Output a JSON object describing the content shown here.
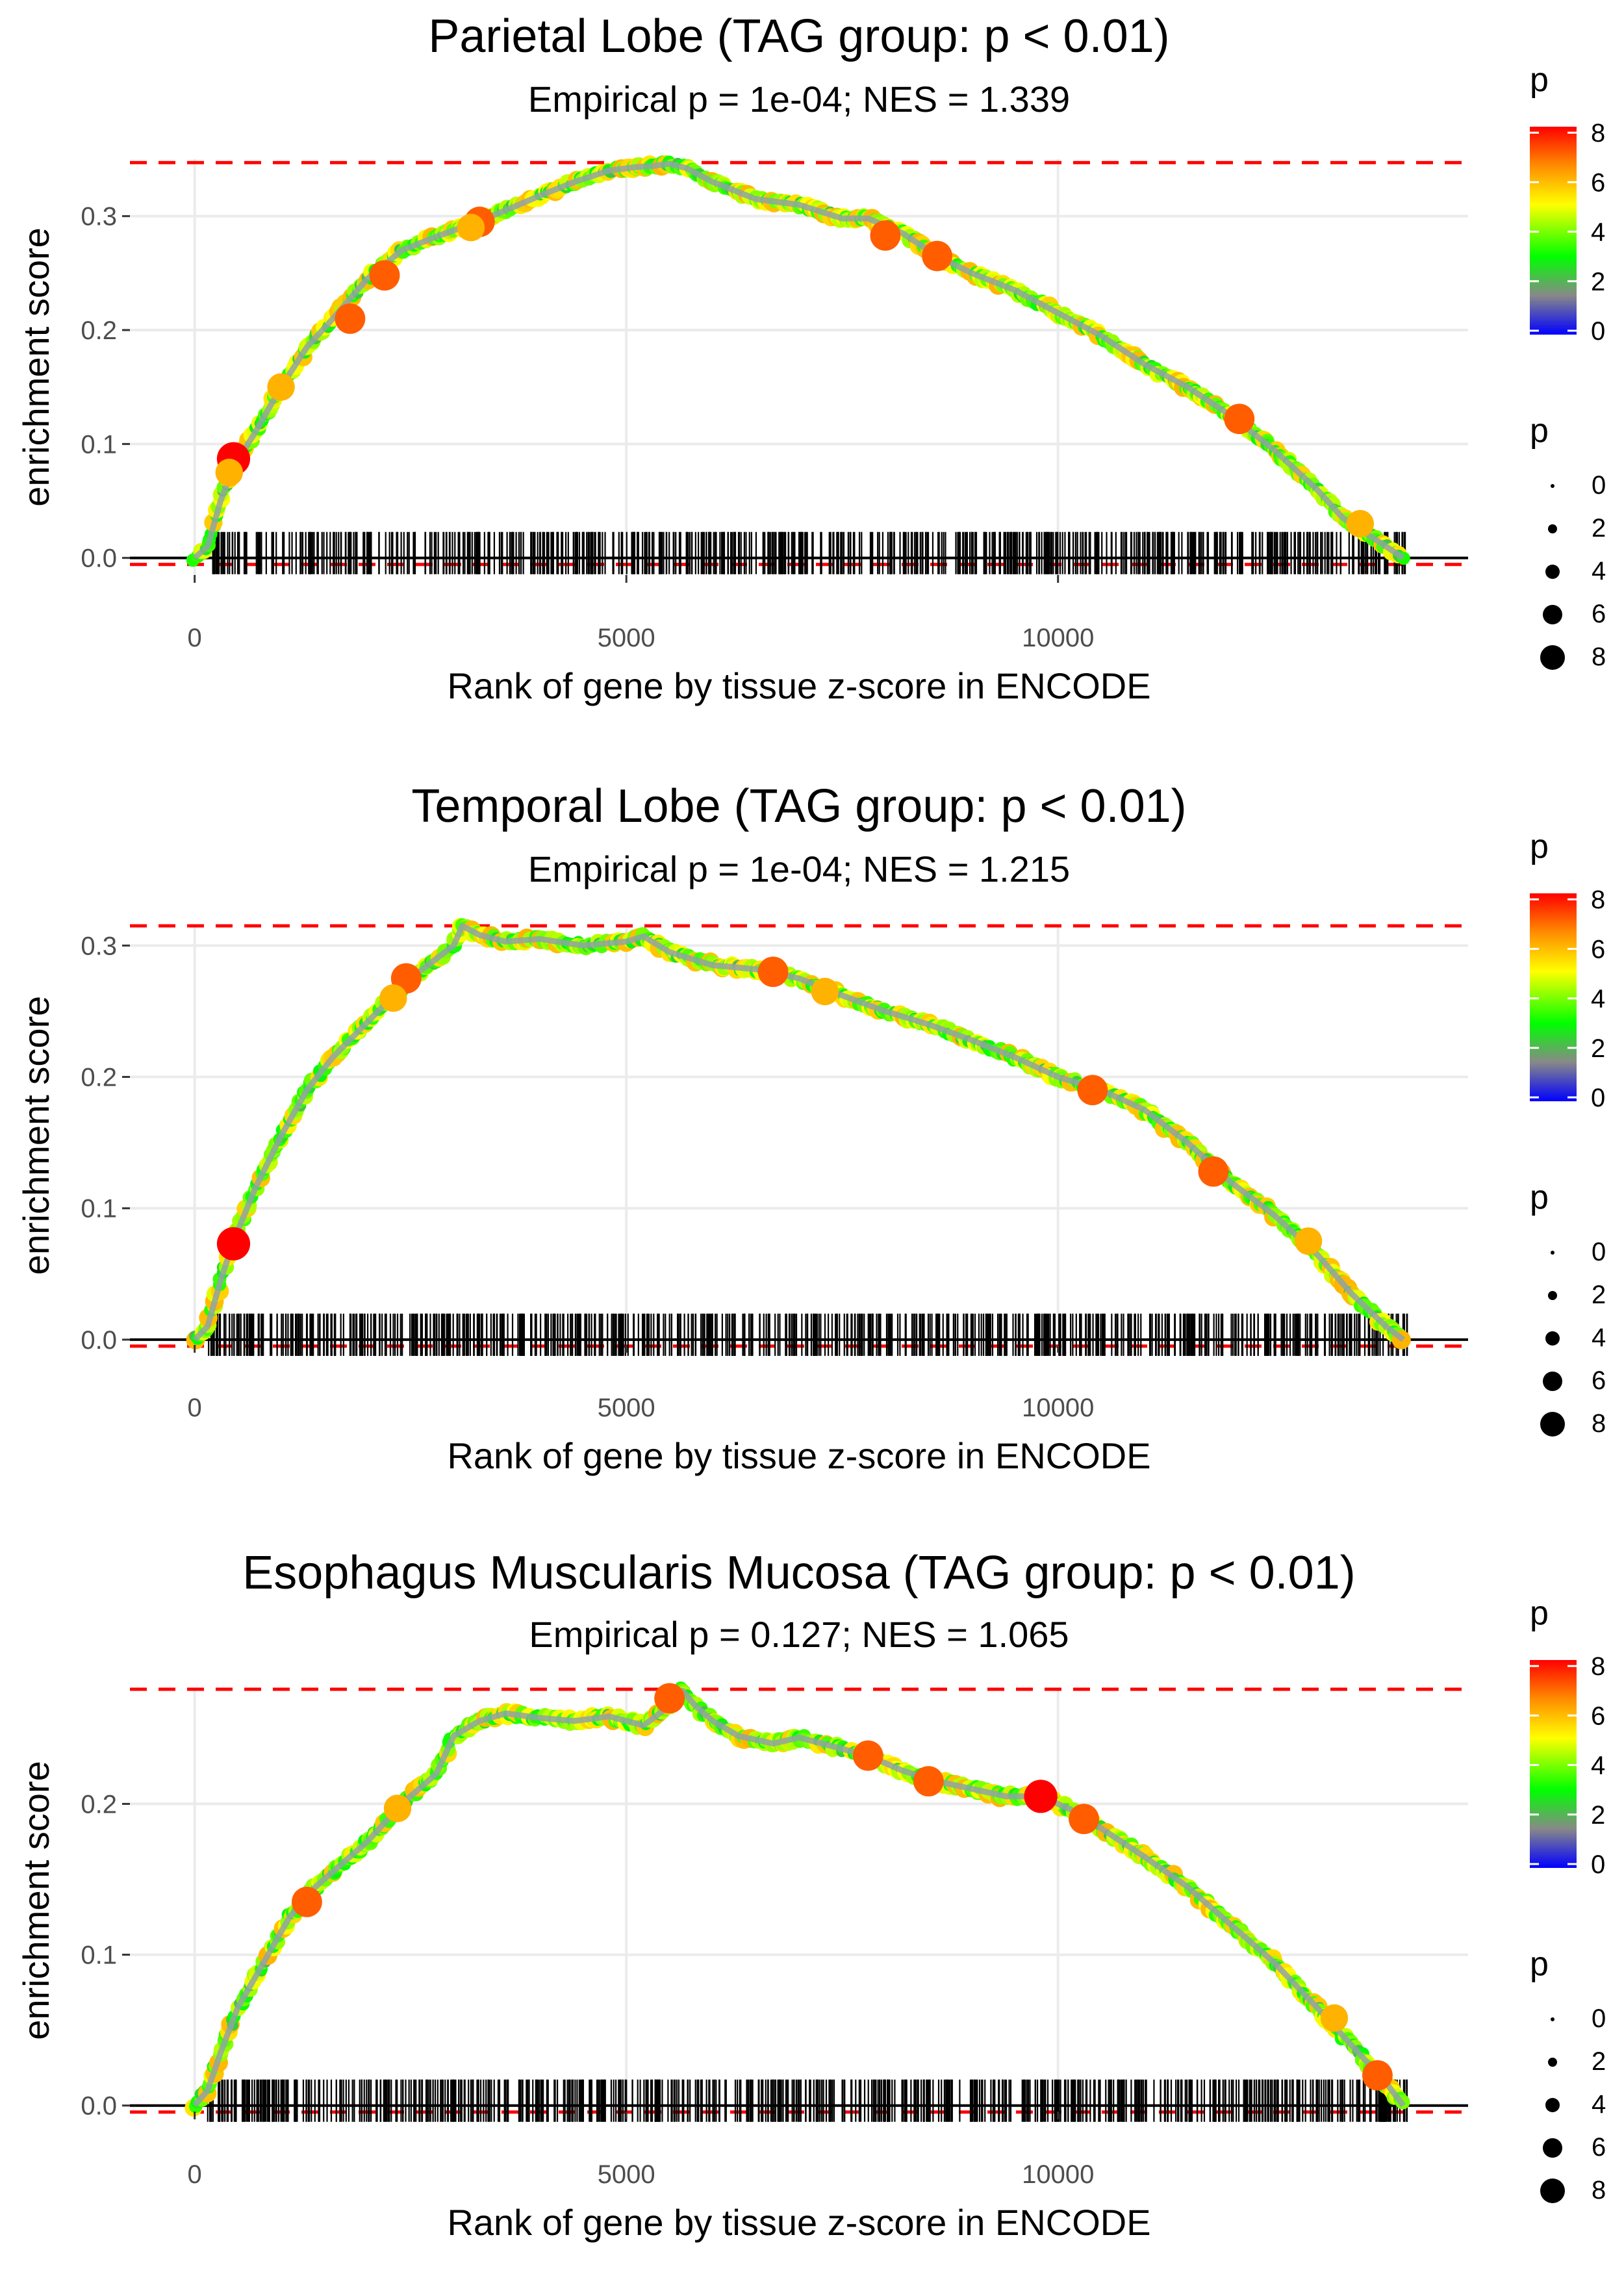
{
  "colorscale": {
    "stops": [
      "#0000ff",
      "#888888",
      "#00ff00",
      "#ffff00",
      "#ff8c00",
      "#ff0000"
    ],
    "stop_values": [
      0,
      1.5,
      3,
      5,
      6.5,
      8
    ]
  },
  "line_color": "#8fa3a3",
  "ref_line_color": "#ff0000",
  "chart_data": [
    {
      "type": "line",
      "title": "Parietal Lobe (TAG group: p < 0.01)",
      "subtitle": "Empirical p = 1e-04; NES = 1.339",
      "xlabel": "Rank of gene by tissue z-score in ENCODE",
      "ylabel": "enrichment score",
      "xlim": [
        -750,
        14750
      ],
      "ylim": [
        -0.015,
        0.35
      ],
      "xticks": [
        0,
        5000,
        10000
      ],
      "xtick_labels": [
        "0",
        "5000",
        "10000"
      ],
      "yticks": [
        0,
        0.1,
        0.2,
        0.3
      ],
      "ytick_labels": [
        "0.0",
        "0.1",
        "0.2",
        "0.3"
      ],
      "max_es": 0.347,
      "curve_x": [
        0,
        150,
        300,
        450,
        700,
        1000,
        1300,
        1600,
        2000,
        2400,
        2800,
        3200,
        3600,
        4000,
        4400,
        4800,
        5100,
        5300,
        5500,
        5700,
        6000,
        6500,
        7000,
        7500,
        7800,
        8200,
        8600,
        9000,
        9500,
        10000,
        10500,
        11000,
        11500,
        12000,
        12500,
        13000,
        13300,
        13600,
        13800,
        14000
      ],
      "curve_y": [
        0,
        0.01,
        0.05,
        0.08,
        0.11,
        0.15,
        0.185,
        0.21,
        0.245,
        0.27,
        0.282,
        0.293,
        0.305,
        0.318,
        0.33,
        0.34,
        0.343,
        0.344,
        0.346,
        0.342,
        0.33,
        0.315,
        0.31,
        0.298,
        0.298,
        0.285,
        0.265,
        0.25,
        0.235,
        0.215,
        0.195,
        0.17,
        0.15,
        0.125,
        0.095,
        0.06,
        0.035,
        0.02,
        0.01,
        0
      ],
      "highlights": [
        {
          "x": 450,
          "y": 0.087,
          "p": 8
        },
        {
          "x": 400,
          "y": 0.075,
          "p": 6
        },
        {
          "x": 1000,
          "y": 0.15,
          "p": 6
        },
        {
          "x": 1800,
          "y": 0.21,
          "p": 7
        },
        {
          "x": 2200,
          "y": 0.248,
          "p": 7
        },
        {
          "x": 3300,
          "y": 0.295,
          "p": 7
        },
        {
          "x": 3200,
          "y": 0.29,
          "p": 6
        },
        {
          "x": 8000,
          "y": 0.283,
          "p": 7
        },
        {
          "x": 8600,
          "y": 0.265,
          "p": 7
        },
        {
          "x": 12100,
          "y": 0.122,
          "p": 7
        },
        {
          "x": 13500,
          "y": 0.03,
          "p": 6
        }
      ]
    },
    {
      "type": "line",
      "title": "Temporal Lobe (TAG group: p < 0.01)",
      "subtitle": "Empirical p = 1e-04; NES = 1.215",
      "xlabel": "Rank of gene by tissue z-score in ENCODE",
      "ylabel": "enrichment score",
      "xlim": [
        -750,
        14750
      ],
      "ylim": [
        -0.004,
        0.315
      ],
      "xticks": [
        0,
        5000,
        10000
      ],
      "xtick_labels": [
        "0",
        "5000",
        "10000"
      ],
      "yticks": [
        0,
        0.1,
        0.2,
        0.3
      ],
      "ytick_labels": [
        "0.0",
        "0.1",
        "0.2",
        "0.3"
      ],
      "max_es": 0.315,
      "curve_x": [
        0,
        150,
        300,
        450,
        700,
        1000,
        1300,
        1600,
        1900,
        2200,
        2500,
        2800,
        3000,
        3100,
        3300,
        3600,
        4000,
        4500,
        5000,
        5200,
        5500,
        6000,
        6500,
        7000,
        7500,
        8000,
        8500,
        9000,
        9500,
        10000,
        10500,
        11000,
        11500,
        12000,
        12500,
        13000,
        13400,
        13800,
        14000
      ],
      "curve_y": [
        0,
        0.01,
        0.045,
        0.075,
        0.115,
        0.155,
        0.19,
        0.215,
        0.235,
        0.255,
        0.275,
        0.29,
        0.3,
        0.315,
        0.308,
        0.303,
        0.305,
        0.3,
        0.303,
        0.307,
        0.295,
        0.285,
        0.282,
        0.275,
        0.262,
        0.25,
        0.24,
        0.228,
        0.215,
        0.2,
        0.19,
        0.175,
        0.15,
        0.12,
        0.095,
        0.065,
        0.035,
        0.01,
        0
      ],
      "highlights": [
        {
          "x": 450,
          "y": 0.073,
          "p": 8
        },
        {
          "x": 2450,
          "y": 0.275,
          "p": 7
        },
        {
          "x": 2300,
          "y": 0.26,
          "p": 6
        },
        {
          "x": 6700,
          "y": 0.28,
          "p": 7
        },
        {
          "x": 7300,
          "y": 0.265,
          "p": 6
        },
        {
          "x": 10400,
          "y": 0.19,
          "p": 7
        },
        {
          "x": 11800,
          "y": 0.128,
          "p": 7
        },
        {
          "x": 12900,
          "y": 0.075,
          "p": 6
        }
      ]
    },
    {
      "type": "line",
      "title": "Esophagus Muscularis Mucosa (TAG group: p < 0.01)",
      "subtitle": "Empirical p = 0.127; NES = 1.065",
      "xlabel": "Rank of gene by tissue z-score in ENCODE",
      "ylabel": "enrichment score",
      "xlim": [
        -750,
        14750
      ],
      "ylim": [
        -0.004,
        0.276
      ],
      "xticks": [
        0,
        5000,
        10000
      ],
      "xtick_labels": [
        "0",
        "5000",
        "10000"
      ],
      "yticks": [
        0,
        0.1,
        0.2
      ],
      "ytick_labels": [
        "0.0",
        "0.1",
        "0.2"
      ],
      "max_es": 0.276,
      "curve_x": [
        0,
        150,
        300,
        500,
        800,
        1100,
        1400,
        1700,
        2000,
        2400,
        2800,
        3000,
        3300,
        3600,
        4000,
        4400,
        4800,
        5200,
        5500,
        5650,
        5800,
        6000,
        6300,
        6700,
        7000,
        7400,
        7800,
        8200,
        8600,
        9000,
        9400,
        9800,
        10200,
        10600,
        11000,
        11500,
        12000,
        12500,
        13000,
        13400,
        13800,
        14000
      ],
      "curve_y": [
        0,
        0.01,
        0.035,
        0.065,
        0.095,
        0.125,
        0.145,
        0.16,
        0.175,
        0.2,
        0.22,
        0.245,
        0.255,
        0.26,
        0.257,
        0.255,
        0.258,
        0.252,
        0.265,
        0.275,
        0.265,
        0.255,
        0.245,
        0.24,
        0.244,
        0.238,
        0.232,
        0.222,
        0.215,
        0.21,
        0.205,
        0.205,
        0.195,
        0.18,
        0.165,
        0.145,
        0.12,
        0.095,
        0.065,
        0.04,
        0.015,
        0
      ],
      "highlights": [
        {
          "x": 1300,
          "y": 0.135,
          "p": 7
        },
        {
          "x": 2350,
          "y": 0.197,
          "p": 6
        },
        {
          "x": 5500,
          "y": 0.27,
          "p": 7
        },
        {
          "x": 7800,
          "y": 0.232,
          "p": 7
        },
        {
          "x": 8500,
          "y": 0.215,
          "p": 7
        },
        {
          "x": 9800,
          "y": 0.205,
          "p": 8
        },
        {
          "x": 10300,
          "y": 0.19,
          "p": 7
        },
        {
          "x": 13200,
          "y": 0.058,
          "p": 6
        },
        {
          "x": 13700,
          "y": 0.02,
          "p": 7
        }
      ]
    }
  ],
  "legends": [
    {
      "color_title": "p",
      "color_ticks": [
        "8",
        "6",
        "4",
        "2",
        "0"
      ],
      "size_title": "p",
      "size_labels": [
        "0",
        "2",
        "4",
        "6",
        "8"
      ]
    },
    {
      "color_title": "p",
      "color_ticks": [
        "8",
        "6",
        "4",
        "2",
        "0"
      ],
      "size_title": "p",
      "size_labels": [
        "0",
        "2",
        "4",
        "6",
        "8"
      ]
    },
    {
      "color_title": "p",
      "color_ticks": [
        "8",
        "6",
        "4",
        "2",
        "0"
      ],
      "size_title": "p",
      "size_labels": [
        "0",
        "2",
        "4",
        "6",
        "8"
      ]
    }
  ]
}
